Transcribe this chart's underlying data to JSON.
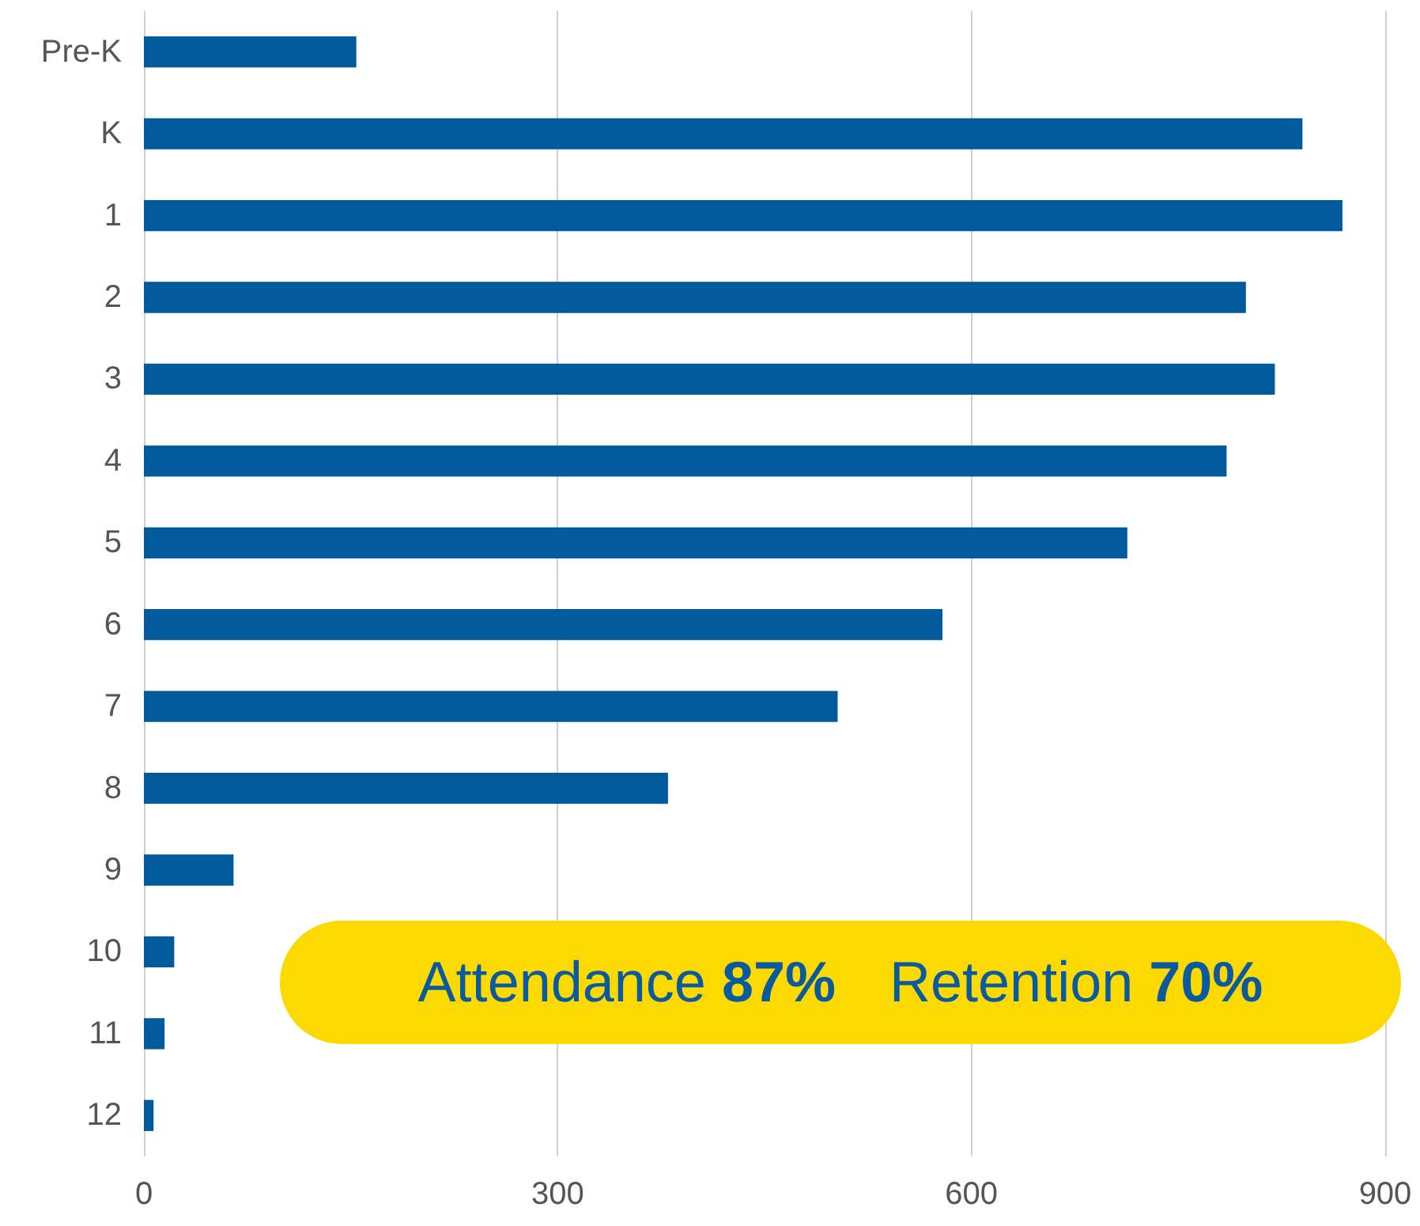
{
  "chart_data": {
    "type": "bar",
    "orientation": "horizontal",
    "categories": [
      "Pre-K",
      "K",
      "1",
      "2",
      "3",
      "4",
      "5",
      "6",
      "7",
      "8",
      "9",
      "10",
      "11",
      "12"
    ],
    "values": [
      154,
      840,
      869,
      799,
      820,
      785,
      713,
      579,
      503,
      380,
      65,
      22,
      15,
      7
    ],
    "color": "#005a9c",
    "xlim": [
      0,
      900
    ],
    "xticks": [
      0,
      300,
      600,
      900
    ],
    "grid": "x",
    "annotations": [
      "Attendance 87%",
      "Retention 70%"
    ]
  }
}
